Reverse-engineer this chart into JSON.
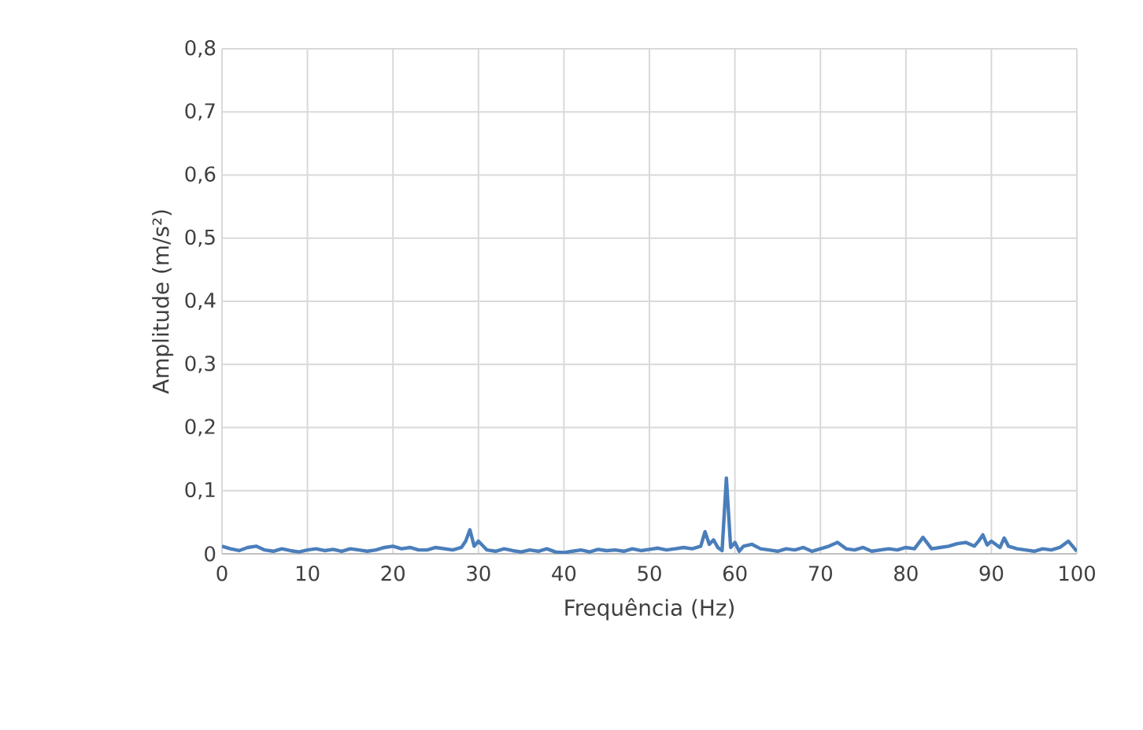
{
  "chart_data": {
    "type": "line",
    "xlabel": "Frequência (Hz)",
    "ylabel": "Amplitude (m/s²)",
    "series": [
      {
        "color": "#4a7ebb",
        "x": [
          0,
          1,
          2,
          3,
          4,
          5,
          6,
          7,
          8,
          9,
          10,
          11,
          12,
          13,
          14,
          15,
          16,
          17,
          18,
          19,
          20,
          21,
          22,
          23,
          24,
          25,
          26,
          27,
          28,
          28.5,
          29,
          29.5,
          30,
          31,
          32,
          33,
          34,
          35,
          36,
          37,
          38,
          39,
          40,
          41,
          42,
          43,
          44,
          45,
          46,
          47,
          48,
          49,
          50,
          51,
          52,
          53,
          54,
          55,
          56,
          56.5,
          57,
          57.5,
          58,
          58.5,
          59,
          59.5,
          60,
          60.5,
          61,
          62,
          63,
          64,
          65,
          66,
          67,
          68,
          69,
          70,
          71,
          72,
          73,
          74,
          75,
          76,
          77,
          78,
          79,
          80,
          81,
          82,
          83,
          84,
          85,
          86,
          87,
          88,
          88.5,
          89,
          89.5,
          90,
          91,
          91.5,
          92,
          93,
          94,
          95,
          96,
          97,
          98,
          99,
          100
        ],
        "values": [
          0.012,
          0.008,
          0.005,
          0.01,
          0.012,
          0.006,
          0.004,
          0.008,
          0.005,
          0.003,
          0.006,
          0.008,
          0.005,
          0.007,
          0.004,
          0.008,
          0.006,
          0.004,
          0.006,
          0.01,
          0.012,
          0.008,
          0.01,
          0.006,
          0.006,
          0.01,
          0.008,
          0.006,
          0.01,
          0.02,
          0.038,
          0.012,
          0.02,
          0.006,
          0.004,
          0.008,
          0.005,
          0.003,
          0.006,
          0.004,
          0.008,
          0.003,
          0.002,
          0.004,
          0.006,
          0.003,
          0.007,
          0.005,
          0.006,
          0.004,
          0.008,
          0.005,
          0.007,
          0.009,
          0.006,
          0.008,
          0.01,
          0.008,
          0.012,
          0.035,
          0.015,
          0.022,
          0.01,
          0.005,
          0.12,
          0.01,
          0.018,
          0.004,
          0.012,
          0.015,
          0.008,
          0.006,
          0.004,
          0.008,
          0.006,
          0.01,
          0.004,
          0.008,
          0.012,
          0.018,
          0.008,
          0.006,
          0.01,
          0.004,
          0.006,
          0.008,
          0.006,
          0.01,
          0.008,
          0.026,
          0.008,
          0.01,
          0.012,
          0.016,
          0.018,
          0.012,
          0.02,
          0.03,
          0.014,
          0.02,
          0.01,
          0.025,
          0.012,
          0.008,
          0.006,
          0.004,
          0.008,
          0.006,
          0.01,
          0.02,
          0.004
        ]
      }
    ],
    "xlim": [
      0,
      100
    ],
    "ylim": [
      0,
      0.8
    ],
    "xticks": [
      0,
      10,
      20,
      30,
      40,
      50,
      60,
      70,
      80,
      90,
      100
    ],
    "yticks": [
      {
        "value": 0,
        "label": "0"
      },
      {
        "value": 0.1,
        "label": "0,1"
      },
      {
        "value": 0.2,
        "label": "0,2"
      },
      {
        "value": 0.3,
        "label": "0,3"
      },
      {
        "value": 0.4,
        "label": "0,4"
      },
      {
        "value": 0.5,
        "label": "0,5"
      },
      {
        "value": 0.6,
        "label": "0,6"
      },
      {
        "value": 0.7,
        "label": "0,7"
      },
      {
        "value": 0.8,
        "label": "0,8"
      }
    ],
    "grid": true
  }
}
